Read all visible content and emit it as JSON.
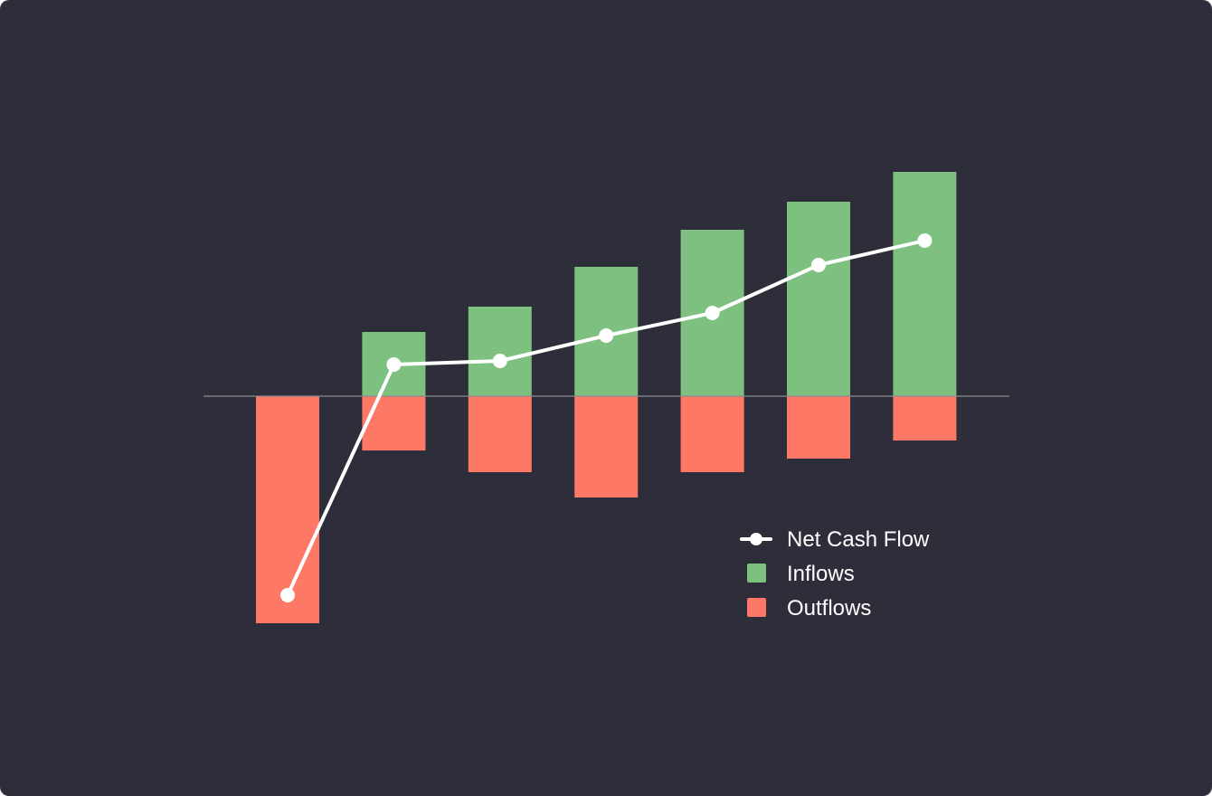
{
  "chart_data": {
    "type": "bar",
    "title": "",
    "xlabel": "",
    "ylabel": "",
    "categories": [
      "",
      "",
      "",
      "",
      "",
      "",
      ""
    ],
    "ylim": [
      -27,
      26
    ],
    "grid": false,
    "legend_placement": "bottom-right",
    "series": [
      {
        "name": "Inflows",
        "type": "bar",
        "color": "#7dc07f",
        "values": [
          0,
          7.1,
          9.9,
          14.3,
          18.4,
          21.5,
          24.8
        ]
      },
      {
        "name": "Outflows",
        "type": "bar",
        "color": "#fd7865",
        "values": [
          -25.1,
          -6.0,
          -8.4,
          -11.2,
          -8.4,
          -6.9,
          -4.9
        ]
      },
      {
        "name": "Net Cash Flow",
        "type": "line",
        "color": "#ffffff",
        "values": [
          -22.0,
          3.5,
          3.9,
          6.7,
          9.2,
          14.5,
          17.2
        ]
      }
    ],
    "background": "#2e2e3a",
    "zero_line_color": "#8a8a92"
  }
}
